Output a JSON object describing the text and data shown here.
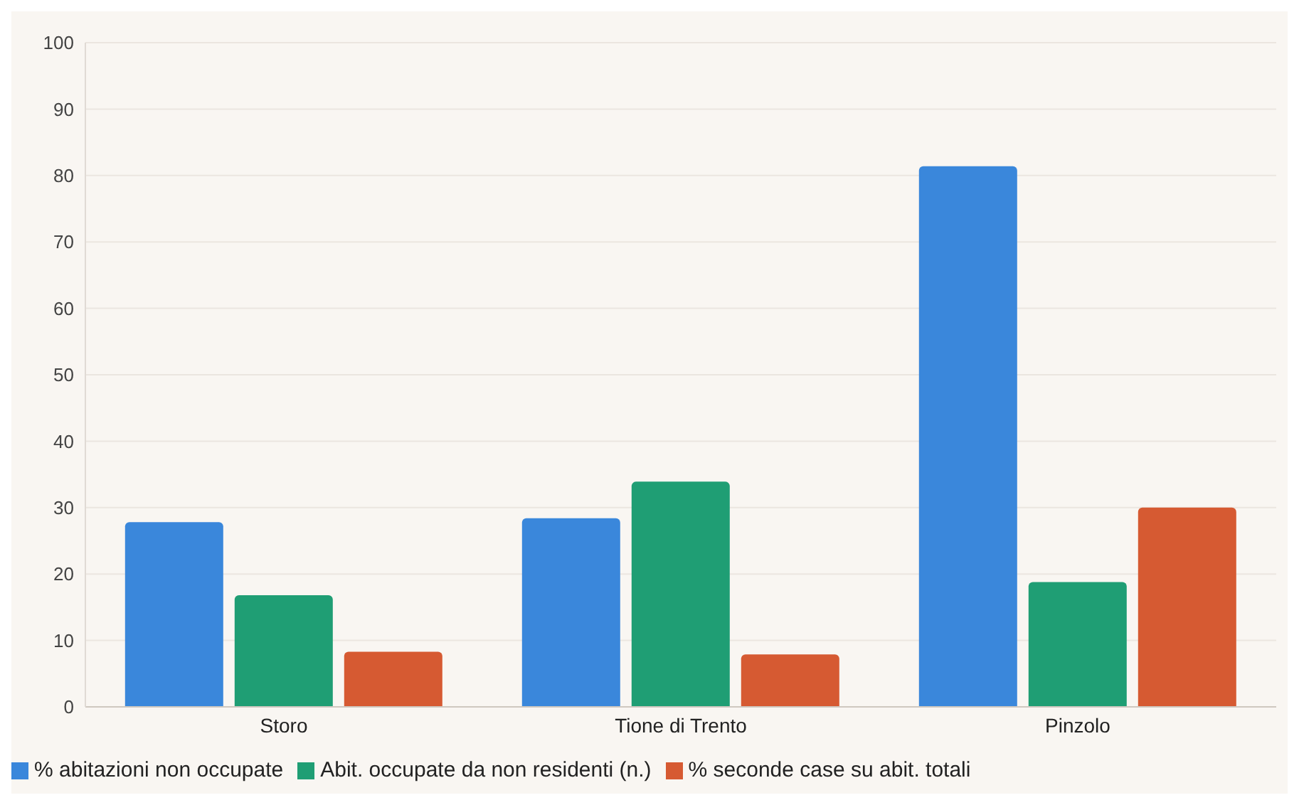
{
  "chart_data": {
    "type": "bar",
    "categories": [
      "Storo",
      "Tione di Trento",
      "Pinzolo"
    ],
    "series": [
      {
        "name": "% abitazioni non occupate",
        "color": "#3a87db",
        "values": [
          27.8,
          28.4,
          81.4
        ]
      },
      {
        "name": "Abit. occupate da non residenti (n.)",
        "color": "#1f9e74",
        "values": [
          16.8,
          33.9,
          18.8
        ]
      },
      {
        "name": "% seconde case su abit. totali",
        "color": "#d65a32",
        "values": [
          8.3,
          7.9,
          30.0
        ]
      }
    ],
    "ylim": [
      0,
      100
    ],
    "yticks": [
      0,
      10,
      20,
      30,
      40,
      50,
      60,
      70,
      80,
      90,
      100
    ],
    "grid": "y",
    "legend": "bottom left"
  }
}
